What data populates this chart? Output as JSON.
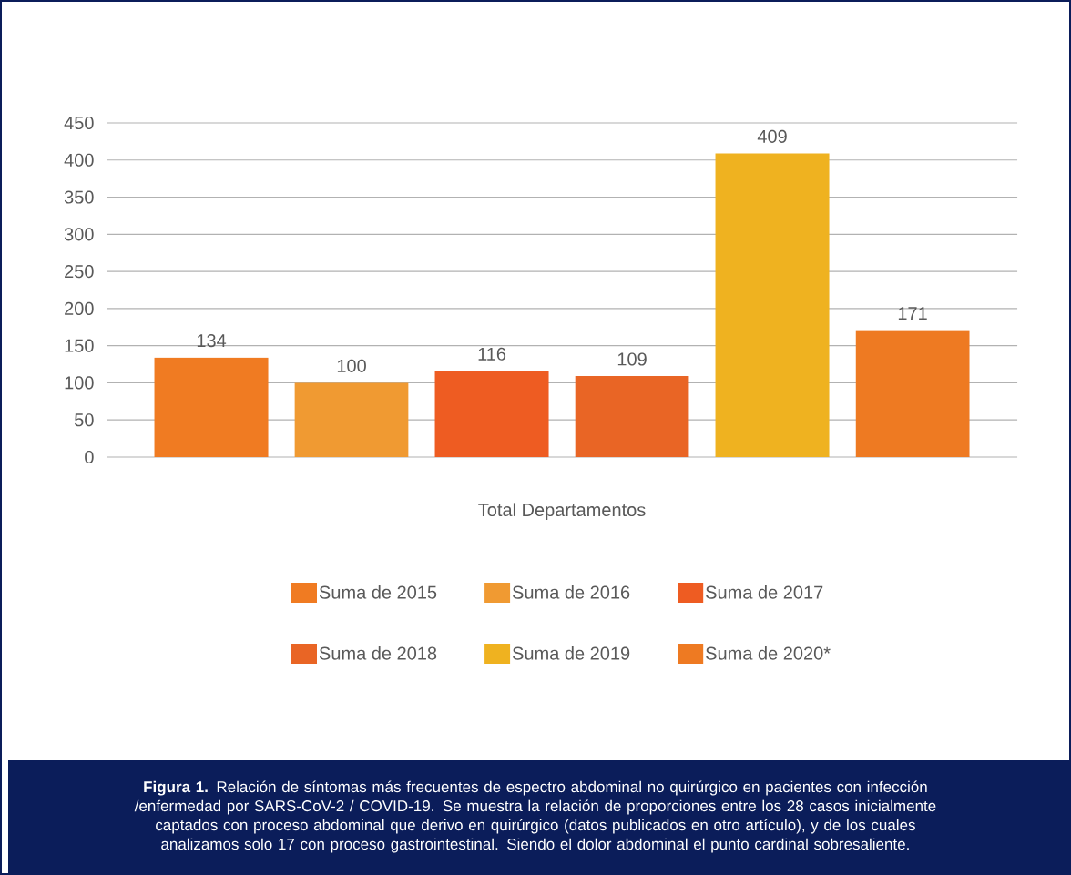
{
  "chart_data": {
    "type": "bar",
    "categories": [
      null
    ],
    "xlabel": "Total Departamentos",
    "series": [
      {
        "name": "Suma de 2015",
        "color": "#f07b22",
        "values": [
          134
        ]
      },
      {
        "name": "Suma de 2016",
        "color": "#f09a32",
        "values": [
          100
        ]
      },
      {
        "name": "Suma de 2017",
        "color": "#ee5c22",
        "values": [
          116
        ]
      },
      {
        "name": "Suma de 2018",
        "color": "#e96525",
        "values": [
          109
        ]
      },
      {
        "name": "Suma de 2019",
        "color": "#efb220",
        "values": [
          409
        ]
      },
      {
        "name": "Suma de 2020*",
        "color": "#ee7a22",
        "values": [
          171
        ]
      }
    ],
    "ylim": [
      0,
      450
    ],
    "yticks": [
      0,
      50,
      100,
      150,
      200,
      250,
      300,
      350,
      400,
      450
    ],
    "grid": "y",
    "legend": "bottom",
    "data_labels": true,
    "annotations": [
      "**Figura 1.** Relación de síntomas más frecuentes de espectro abdominal no quirúrgico en pacientes con infección /enfermedad por SARS-CoV-2 / COVID-19. Se muestra la relación de proporciones entre los 28 casos inicialmente captados con proceso abdominal que derivo en quirúrgico (datos publicados en otro artículo), y de los cuales analizamos solo 17 con proceso gastrointestinal. Siendo el dolor abdominal el punto cardinal sobresaliente."
    ]
  }
}
